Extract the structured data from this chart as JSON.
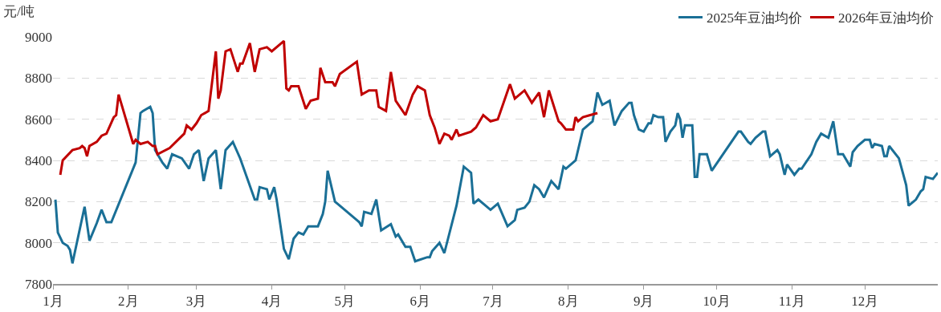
{
  "chart_data": {
    "type": "line",
    "ylabel": "元/吨",
    "xlim": [
      "--01-01",
      "--12-31"
    ],
    "xticks": [
      {
        "value": "--01-01",
        "label": "1月"
      },
      {
        "value": "--02-01",
        "label": "2月"
      },
      {
        "value": "--03-01",
        "label": "3月"
      },
      {
        "value": "--04-01",
        "label": "4月"
      },
      {
        "value": "--05-01",
        "label": "5月"
      },
      {
        "value": "--06-01",
        "label": "6月"
      },
      {
        "value": "--07-01",
        "label": "7月"
      },
      {
        "value": "--08-01",
        "label": "8月"
      },
      {
        "value": "--09-01",
        "label": "9月"
      },
      {
        "value": "--10-01",
        "label": "10月"
      },
      {
        "value": "--11-01",
        "label": "11月"
      },
      {
        "value": "--12-01",
        "label": "12月"
      }
    ],
    "ylim": [
      7800,
      9000
    ],
    "yticks": [
      7800,
      8000,
      8200,
      8400,
      8600,
      8800,
      9000
    ],
    "grid": "y",
    "legend": "top right",
    "marker": "none",
    "line_style": "solid",
    "series": [
      {
        "name": "2025年豆油均价",
        "color": "#1a6f96",
        "x": [
          "--01-02",
          "--01-03",
          "--01-05",
          "--01-07",
          "--01-08",
          "--01-09",
          "--01-14",
          "--01-16",
          "--01-19",
          "--01-21",
          "--01-23",
          "--01-25",
          "--02-04",
          "--02-06",
          "--02-07",
          "--02-10",
          "--02-11",
          "--02-12",
          "--02-15",
          "--02-17",
          "--02-19",
          "--02-23",
          "--02-26",
          "--02-28",
          "--03-02",
          "--03-04",
          "--03-06",
          "--03-09",
          "--03-11",
          "--03-13",
          "--03-16",
          "--03-19",
          "--03-25",
          "--03-26",
          "--03-27",
          "--03-30",
          "--03-31",
          "--04-02",
          "--04-03",
          "--04-06",
          "--04-08",
          "--04-10",
          "--04-12",
          "--04-14",
          "--04-16",
          "--04-20",
          "--04-22",
          "--04-23",
          "--04-24",
          "--04-27",
          "--05-06",
          "--05-07",
          "--05-08",
          "--05-09",
          "--05-12",
          "--05-14",
          "--05-16",
          "--05-20",
          "--05-22",
          "--05-23",
          "--05-26",
          "--05-28",
          "--05-30",
          "--06-04",
          "--06-05",
          "--06-06",
          "--06-09",
          "--06-11",
          "--06-16",
          "--06-19",
          "--06-22",
          "--06-23",
          "--06-25",
          "--06-30",
          "--07-03",
          "--07-07",
          "--07-10",
          "--07-11",
          "--07-14",
          "--07-16",
          "--07-18",
          "--07-20",
          "--07-22",
          "--07-25",
          "--07-28",
          "--07-30",
          "--07-31",
          "--08-04",
          "--08-07",
          "--08-11",
          "--08-13",
          "--08-15",
          "--08-18",
          "--08-20",
          "--08-23",
          "--08-26",
          "--08-27",
          "--08-28",
          "--08-30",
          "--09-01",
          "--09-03",
          "--09-04",
          "--09-05",
          "--09-07",
          "--09-09",
          "--09-10",
          "--09-12",
          "--09-14",
          "--09-15",
          "--09-16",
          "--09-17",
          "--09-18",
          "--09-21",
          "--09-22",
          "--09-23",
          "--09-24",
          "--09-27",
          "--09-29",
          "--10-10",
          "--10-11",
          "--10-14",
          "--10-15",
          "--10-17",
          "--10-20",
          "--10-21",
          "--10-23",
          "--10-26",
          "--10-27",
          "--10-29",
          "--10-30",
          "--11-02",
          "--11-04",
          "--11-05",
          "--11-09",
          "--11-11",
          "--11-13",
          "--11-16",
          "--11-18",
          "--11-20",
          "--11-22",
          "--11-25",
          "--11-26",
          "--11-28",
          "--12-01",
          "--12-03",
          "--12-04",
          "--12-05",
          "--12-08",
          "--12-09",
          "--12-10",
          "--12-11",
          "--12-15",
          "--12-18",
          "--12-19",
          "--12-22",
          "--12-24",
          "--12-25",
          "--12-26",
          "--12-29",
          "--12-31"
        ],
        "values": [
          8210,
          8050,
          8000,
          7985,
          7965,
          7900,
          8175,
          8010,
          8095,
          8160,
          8100,
          8100,
          8390,
          8630,
          8640,
          8660,
          8630,
          8450,
          8390,
          8360,
          8430,
          8410,
          8360,
          8430,
          8450,
          8300,
          8410,
          8450,
          8260,
          8450,
          8490,
          8410,
          8210,
          8210,
          8270,
          8260,
          8210,
          8270,
          8210,
          7970,
          7920,
          8020,
          8050,
          8040,
          8080,
          8080,
          8140,
          8200,
          8350,
          8200,
          8110,
          8100,
          8080,
          8150,
          8140,
          8210,
          8060,
          8090,
          8030,
          8040,
          7980,
          7980,
          7910,
          7930,
          7930,
          7960,
          8000,
          7950,
          8180,
          8370,
          8340,
          8190,
          8210,
          8160,
          8190,
          8080,
          8110,
          8160,
          8170,
          8200,
          8280,
          8260,
          8220,
          8300,
          8260,
          8370,
          8360,
          8400,
          8550,
          8590,
          8730,
          8670,
          8690,
          8570,
          8640,
          8680,
          8680,
          8620,
          8550,
          8540,
          8580,
          8580,
          8620,
          8610,
          8610,
          8490,
          8540,
          8570,
          8630,
          8600,
          8510,
          8570,
          8570,
          8320,
          8320,
          8430,
          8430,
          8350,
          8540,
          8540,
          8490,
          8480,
          8510,
          8540,
          8540,
          8420,
          8450,
          8430,
          8330,
          8380,
          8330,
          8360,
          8360,
          8430,
          8490,
          8530,
          8510,
          8590,
          8430,
          8430,
          8370,
          8440,
          8470,
          8500,
          8500,
          8460,
          8480,
          8470,
          8420,
          8420,
          8470,
          8410,
          8280,
          8180,
          8210,
          8250,
          8260,
          8320,
          8310,
          8340
        ]
      },
      {
        "name": "2026年豆油均价",
        "color": "#c00000",
        "x": [
          "--01-04",
          "--01-05",
          "--01-09",
          "--01-12",
          "--01-13",
          "--01-14",
          "--01-15",
          "--01-16",
          "--01-19",
          "--01-21",
          "--01-23",
          "--01-26",
          "--01-27",
          "--01-28",
          "--02-03",
          "--02-04",
          "--02-06",
          "--02-09",
          "--02-11",
          "--02-12",
          "--02-13",
          "--02-18",
          "--02-24",
          "--02-25",
          "--02-27",
          "--03-01",
          "--03-03",
          "--03-06",
          "--03-09",
          "--03-10",
          "--03-11",
          "--03-13",
          "--03-15",
          "--03-18",
          "--03-19",
          "--03-20",
          "--03-23",
          "--03-25",
          "--03-27",
          "--03-30",
          "--04-01",
          "--04-06",
          "--04-07",
          "--04-08",
          "--04-09",
          "--04-12",
          "--04-15",
          "--04-17",
          "--04-20",
          "--04-21",
          "--04-23",
          "--04-26",
          "--04-27",
          "--04-29",
          "--05-06",
          "--05-08",
          "--05-11",
          "--05-14",
          "--05-15",
          "--05-18",
          "--05-20",
          "--05-22",
          "--05-26",
          "--05-29",
          "--05-31",
          "--06-03",
          "--06-05",
          "--06-07",
          "--06-09",
          "--06-11",
          "--06-13",
          "--06-14",
          "--06-16",
          "--06-17",
          "--06-22",
          "--06-23",
          "--06-24",
          "--06-27",
          "--06-30",
          "--07-03",
          "--07-08",
          "--07-10",
          "--07-14",
          "--07-17",
          "--07-20",
          "--07-22",
          "--07-24",
          "--07-28",
          "--07-29",
          "--07-31",
          "--08-03",
          "--08-04",
          "--08-05",
          "--08-07",
          "--08-10",
          "--08-13"
        ],
        "values": [
          8330,
          8400,
          8450,
          8460,
          8470,
          8460,
          8420,
          8470,
          8490,
          8520,
          8530,
          8610,
          8620,
          8720,
          8480,
          8500,
          8480,
          8490,
          8470,
          8470,
          8430,
          8460,
          8530,
          8570,
          8550,
          8580,
          8620,
          8640,
          8930,
          8700,
          8740,
          8930,
          8940,
          8830,
          8870,
          8870,
          8970,
          8830,
          8940,
          8950,
          8930,
          8980,
          8750,
          8740,
          8760,
          8760,
          8650,
          8690,
          8700,
          8850,
          8780,
          8780,
          8760,
          8820,
          8880,
          8720,
          8740,
          8740,
          8660,
          8640,
          8830,
          8690,
          8620,
          8720,
          8760,
          8740,
          8620,
          8560,
          8480,
          8530,
          8520,
          8500,
          8550,
          8520,
          8540,
          8550,
          8560,
          8620,
          8590,
          8600,
          8770,
          8700,
          8740,
          8680,
          8730,
          8610,
          8740,
          8590,
          8580,
          8550,
          8550,
          8610,
          8590,
          8610,
          8620,
          8630
        ]
      }
    ]
  }
}
